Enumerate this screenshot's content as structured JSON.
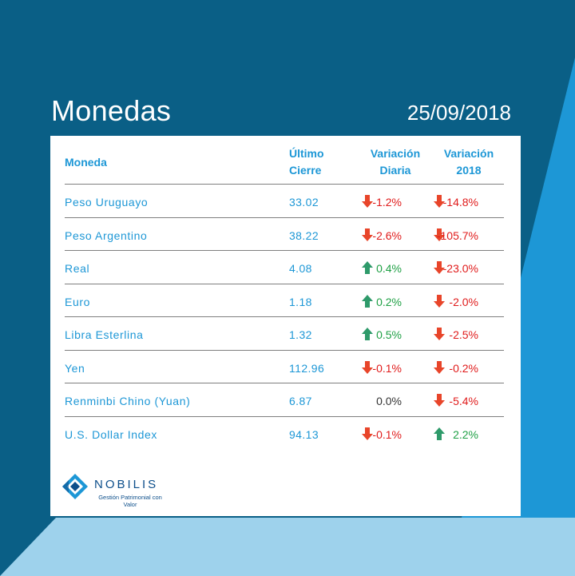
{
  "page": {
    "title": "Monedas",
    "date": "25/09/2018"
  },
  "colors": {
    "background_dark": "#0a5f86",
    "background_light": "#1d97d6",
    "background_pale": "#9ed2ec",
    "header_text": "#1d97d6",
    "negative": "#e01b1b",
    "positive": "#1fa045",
    "down_arrow": "#e8452a",
    "up_arrow": "#2e9a6a"
  },
  "table": {
    "headers": {
      "moneda": "Moneda",
      "ultimo_1": "Último",
      "ultimo_2": "Cierre",
      "diaria_1": "Variación",
      "diaria_2": "Diaria",
      "anual_1": "Variación",
      "anual_2": "2018"
    },
    "rows": [
      {
        "name": "Peso Uruguayo",
        "close": "33.02",
        "daily": "-1.2%",
        "daily_dir": "down-arrow-icon",
        "ytd": "-14.8%",
        "ytd_dir": "down-arrow-icon"
      },
      {
        "name": "Peso Argentino",
        "close": "38.22",
        "daily": "-2.6%",
        "daily_dir": "down-arrow-icon",
        "ytd": "-105.7%",
        "ytd_dir": "down-arrow-icon"
      },
      {
        "name": "Real",
        "close": "4.08",
        "daily": "0.4%",
        "daily_dir": "up-arrow-icon",
        "ytd": "-23.0%",
        "ytd_dir": "down-arrow-icon"
      },
      {
        "name": "Euro",
        "close": "1.18",
        "daily": "0.2%",
        "daily_dir": "up-arrow-icon",
        "ytd": "-2.0%",
        "ytd_dir": "down-arrow-icon"
      },
      {
        "name": "Libra Esterlina",
        "close": "1.32",
        "daily": "0.5%",
        "daily_dir": "up-arrow-icon",
        "ytd": "-2.5%",
        "ytd_dir": "down-arrow-icon"
      },
      {
        "name": "Yen",
        "close": "112.96",
        "daily": "-0.1%",
        "daily_dir": "down-arrow-icon",
        "ytd": "-0.2%",
        "ytd_dir": "down-arrow-icon"
      },
      {
        "name": "Renminbi Chino (Yuan)",
        "close": "6.87",
        "daily": "0.0%",
        "daily_dir": "none",
        "ytd": "-5.4%",
        "ytd_dir": "down-arrow-icon"
      },
      {
        "name": "U.S. Dollar Index",
        "close": "94.13",
        "daily": "-0.1%",
        "daily_dir": "down-arrow-icon",
        "ytd": "2.2%",
        "ytd_dir": "up-arrow-icon"
      }
    ]
  },
  "logo": {
    "brand": "NOBILIS",
    "tagline": "Gestión Patrimonial con Valor"
  }
}
